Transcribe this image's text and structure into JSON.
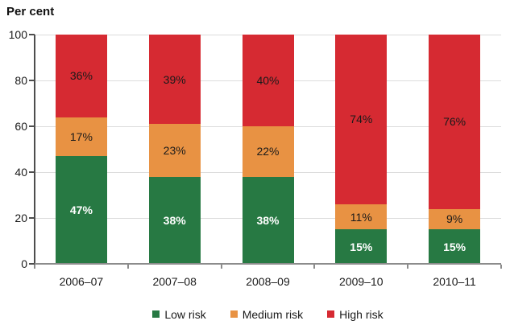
{
  "title": "Per cent",
  "chart_data": {
    "type": "bar",
    "stacked": true,
    "title": "Per cent",
    "categories": [
      "2006–07",
      "2007–08",
      "2008–09",
      "2009–10",
      "2010–11"
    ],
    "series": [
      {
        "name": "Low risk",
        "values": [
          47,
          38,
          38,
          15,
          15
        ],
        "color": "#277943",
        "label_color": "#FFFFFF",
        "label_bold": true
      },
      {
        "name": "Medium risk",
        "values": [
          17,
          23,
          22,
          11,
          9
        ],
        "color": "#E89243",
        "label_color": "#1A1A1A",
        "label_bold": false
      },
      {
        "name": "High risk",
        "values": [
          36,
          39,
          40,
          74,
          76
        ],
        "color": "#D62A32",
        "label_color": "#1A1A1A",
        "label_bold": false
      }
    ],
    "value_suffix": "%",
    "ylabel": "Per cent",
    "ylim": [
      0,
      100
    ],
    "yticks": [
      0,
      20,
      40,
      60,
      80,
      100
    ],
    "grid": true,
    "legend_position": "bottom"
  },
  "colors": {
    "grid": "#DCDCDC",
    "y_axis": "#4D4D4D",
    "x_axis": "#8C8C8C",
    "text": "#1A1A1A",
    "background": "#FFFFFF"
  }
}
